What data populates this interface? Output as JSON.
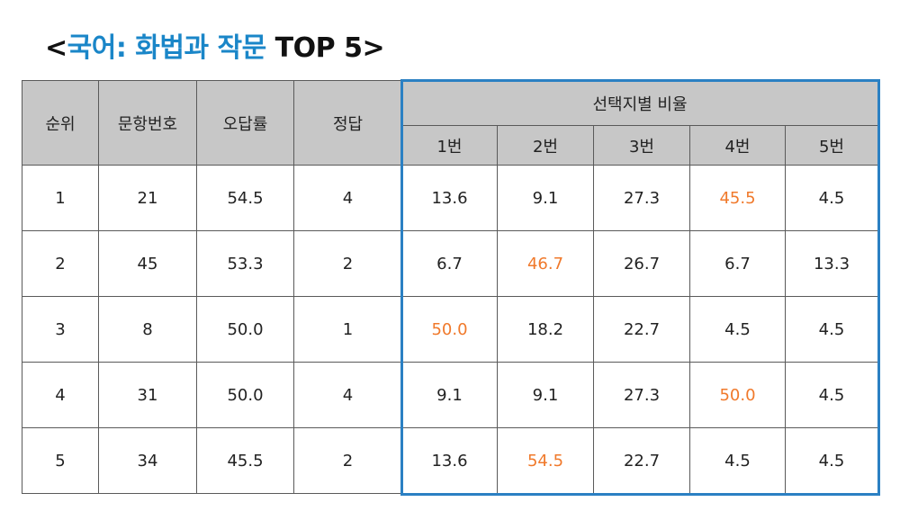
{
  "title": {
    "open": "<",
    "subject": "국어: 화법과 작문",
    "rest": " TOP 5>"
  },
  "table": {
    "headers": {
      "rank": "순위",
      "question_no": "문항번호",
      "error_rate": "오답률",
      "answer": "정답",
      "choice_group": "선택지별 비율",
      "choices": [
        "1번",
        "2번",
        "3번",
        "4번",
        "5번"
      ]
    },
    "rows": [
      {
        "rank": "1",
        "question_no": "21",
        "error_rate": "54.5",
        "answer": "4",
        "choices": [
          "13.6",
          "9.1",
          "27.3",
          "45.5",
          "4.5"
        ],
        "highlight_index": 3
      },
      {
        "rank": "2",
        "question_no": "45",
        "error_rate": "53.3",
        "answer": "2",
        "choices": [
          "6.7",
          "46.7",
          "26.7",
          "6.7",
          "13.3"
        ],
        "highlight_index": 1
      },
      {
        "rank": "3",
        "question_no": "8",
        "error_rate": "50.0",
        "answer": "1",
        "choices": [
          "50.0",
          "18.2",
          "22.7",
          "4.5",
          "4.5"
        ],
        "highlight_index": 0
      },
      {
        "rank": "4",
        "question_no": "31",
        "error_rate": "50.0",
        "answer": "4",
        "choices": [
          "9.1",
          "9.1",
          "27.3",
          "50.0",
          "4.5"
        ],
        "highlight_index": 3
      },
      {
        "rank": "5",
        "question_no": "34",
        "error_rate": "45.5",
        "answer": "2",
        "choices": [
          "13.6",
          "54.5",
          "22.7",
          "4.5",
          "4.5"
        ],
        "highlight_index": 1
      }
    ]
  },
  "colors": {
    "title_accent": "#1a86c8",
    "highlight": "#f0792b",
    "header_bg": "#c7c7c7",
    "frame": "#2b80c3"
  }
}
